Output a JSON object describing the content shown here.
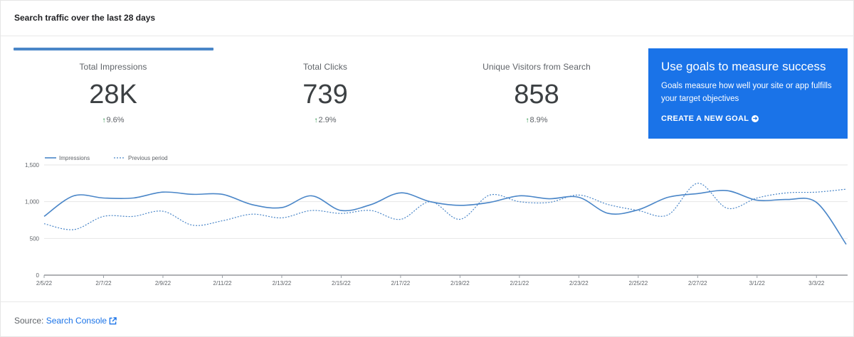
{
  "header": {
    "title": "Search traffic over the last 28 days"
  },
  "metrics": [
    {
      "label": "Total Impressions",
      "value": "28K",
      "change": "9.6%"
    },
    {
      "label": "Total Clicks",
      "value": "739",
      "change": "2.9%"
    },
    {
      "label": "Unique Visitors from Search",
      "value": "858",
      "change": "8.9%"
    }
  ],
  "goal_card": {
    "title": "Use goals to measure success",
    "text": "Goals measure how well your site or app fulfills your target objectives",
    "link_label": "CREATE A NEW GOAL"
  },
  "icons": {
    "trend": "arrow-up-icon",
    "goal_link": "arrow-circle-right-icon",
    "external": "external-link-icon"
  },
  "colors": {
    "accent": "#1a73e8",
    "series": "#4a86c8",
    "positive": "#1e8e3e"
  },
  "footer": {
    "source_prefix": "Source:",
    "source_link": "Search Console"
  },
  "chart_data": {
    "type": "line",
    "x": [
      "2/5/22",
      "2/6/22",
      "2/7/22",
      "2/8/22",
      "2/9/22",
      "2/10/22",
      "2/11/22",
      "2/12/22",
      "2/13/22",
      "2/14/22",
      "2/15/22",
      "2/16/22",
      "2/17/22",
      "2/18/22",
      "2/19/22",
      "2/20/22",
      "2/21/22",
      "2/22/22",
      "2/23/22",
      "2/24/22",
      "2/25/22",
      "2/26/22",
      "2/27/22",
      "2/28/22",
      "3/1/22",
      "3/2/22",
      "3/3/22",
      "3/4/22"
    ],
    "x_tick_labels": [
      "2/5/22",
      "2/7/22",
      "2/9/22",
      "2/11/22",
      "2/13/22",
      "2/15/22",
      "2/17/22",
      "2/19/22",
      "2/21/22",
      "2/23/22",
      "2/25/22",
      "2/27/22",
      "3/1/22",
      "3/3/22"
    ],
    "series": [
      {
        "name": "Impressions",
        "style": "solid",
        "values": [
          800,
          1080,
          1050,
          1050,
          1130,
          1100,
          1100,
          960,
          920,
          1080,
          880,
          960,
          1120,
          1000,
          950,
          990,
          1080,
          1040,
          1060,
          840,
          890,
          1060,
          1110,
          1150,
          1020,
          1030,
          990,
          420
        ]
      },
      {
        "name": "Previous period",
        "style": "dotted",
        "values": [
          700,
          620,
          800,
          800,
          870,
          680,
          740,
          830,
          780,
          880,
          840,
          880,
          760,
          1000,
          760,
          1090,
          1000,
          990,
          1090,
          960,
          880,
          820,
          1250,
          910,
          1050,
          1120,
          1130,
          1170
        ]
      }
    ],
    "ylim": [
      0,
      1500
    ],
    "y_ticks": [
      0,
      500,
      1000,
      1500
    ],
    "y_tick_labels": [
      "0",
      "500",
      "1,000",
      "1,500"
    ],
    "grid": true,
    "legend": "top-left"
  }
}
